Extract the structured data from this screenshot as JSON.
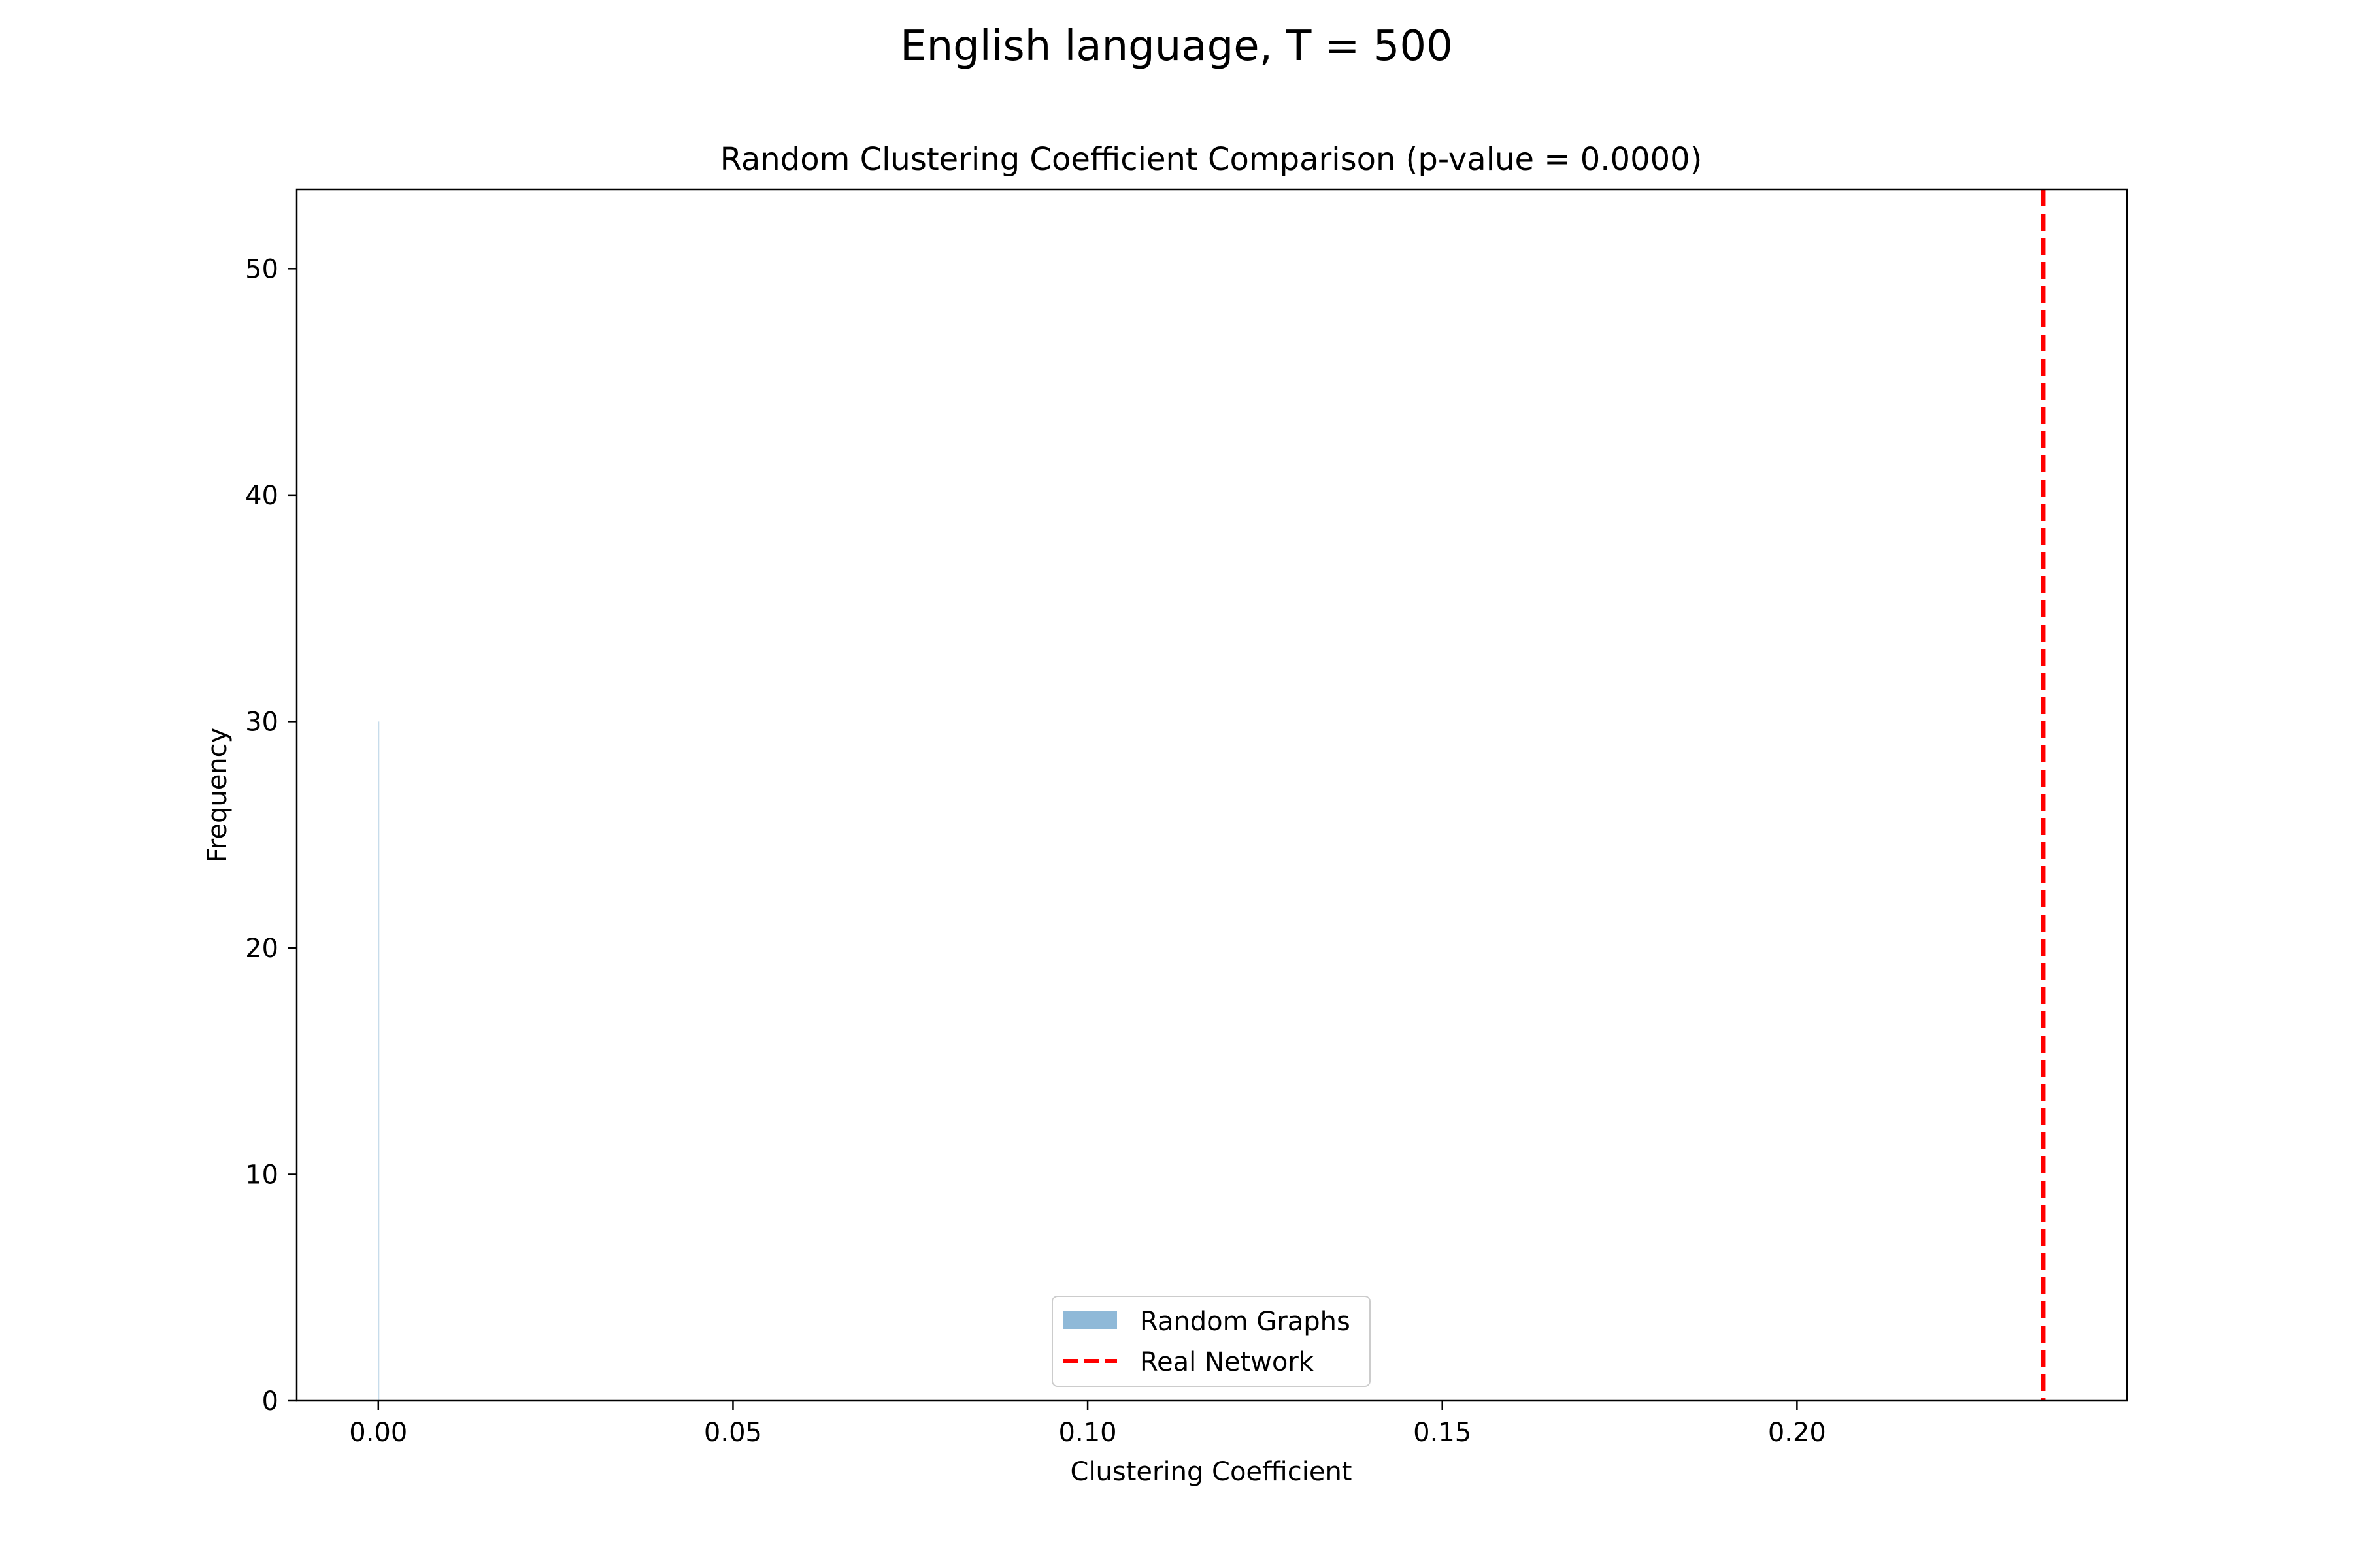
{
  "figure": {
    "suptitle": "English language, T = 500"
  },
  "chart_data": {
    "type": "bar",
    "title": "Random Clustering Coefficient Comparison (p-value = 0.0000)",
    "xlabel": "Clustering Coefficient",
    "ylabel": "Frequency",
    "xlim": [
      -0.0115,
      0.2465
    ],
    "ylim": [
      0,
      53.5
    ],
    "xticks": [
      0.0,
      0.05,
      0.1,
      0.15,
      0.2
    ],
    "xtick_labels": [
      "0.00",
      "0.05",
      "0.10",
      "0.15",
      "0.20"
    ],
    "yticks": [
      0,
      10,
      20,
      30,
      40,
      50
    ],
    "ytick_labels": [
      "0",
      "10",
      "20",
      "30",
      "40",
      "50"
    ],
    "grid": false,
    "legend_position": "lower center",
    "series": [
      {
        "name": "Random Graphs",
        "kind": "histogram",
        "color": "#8fb9d8",
        "bins": [
          {
            "x0": 0.0,
            "x1": 0.00012,
            "count": 30
          }
        ]
      },
      {
        "name": "Real Network",
        "kind": "vline",
        "color": "#ff0000",
        "linestyle": "dashed",
        "x": 0.2347
      }
    ]
  }
}
